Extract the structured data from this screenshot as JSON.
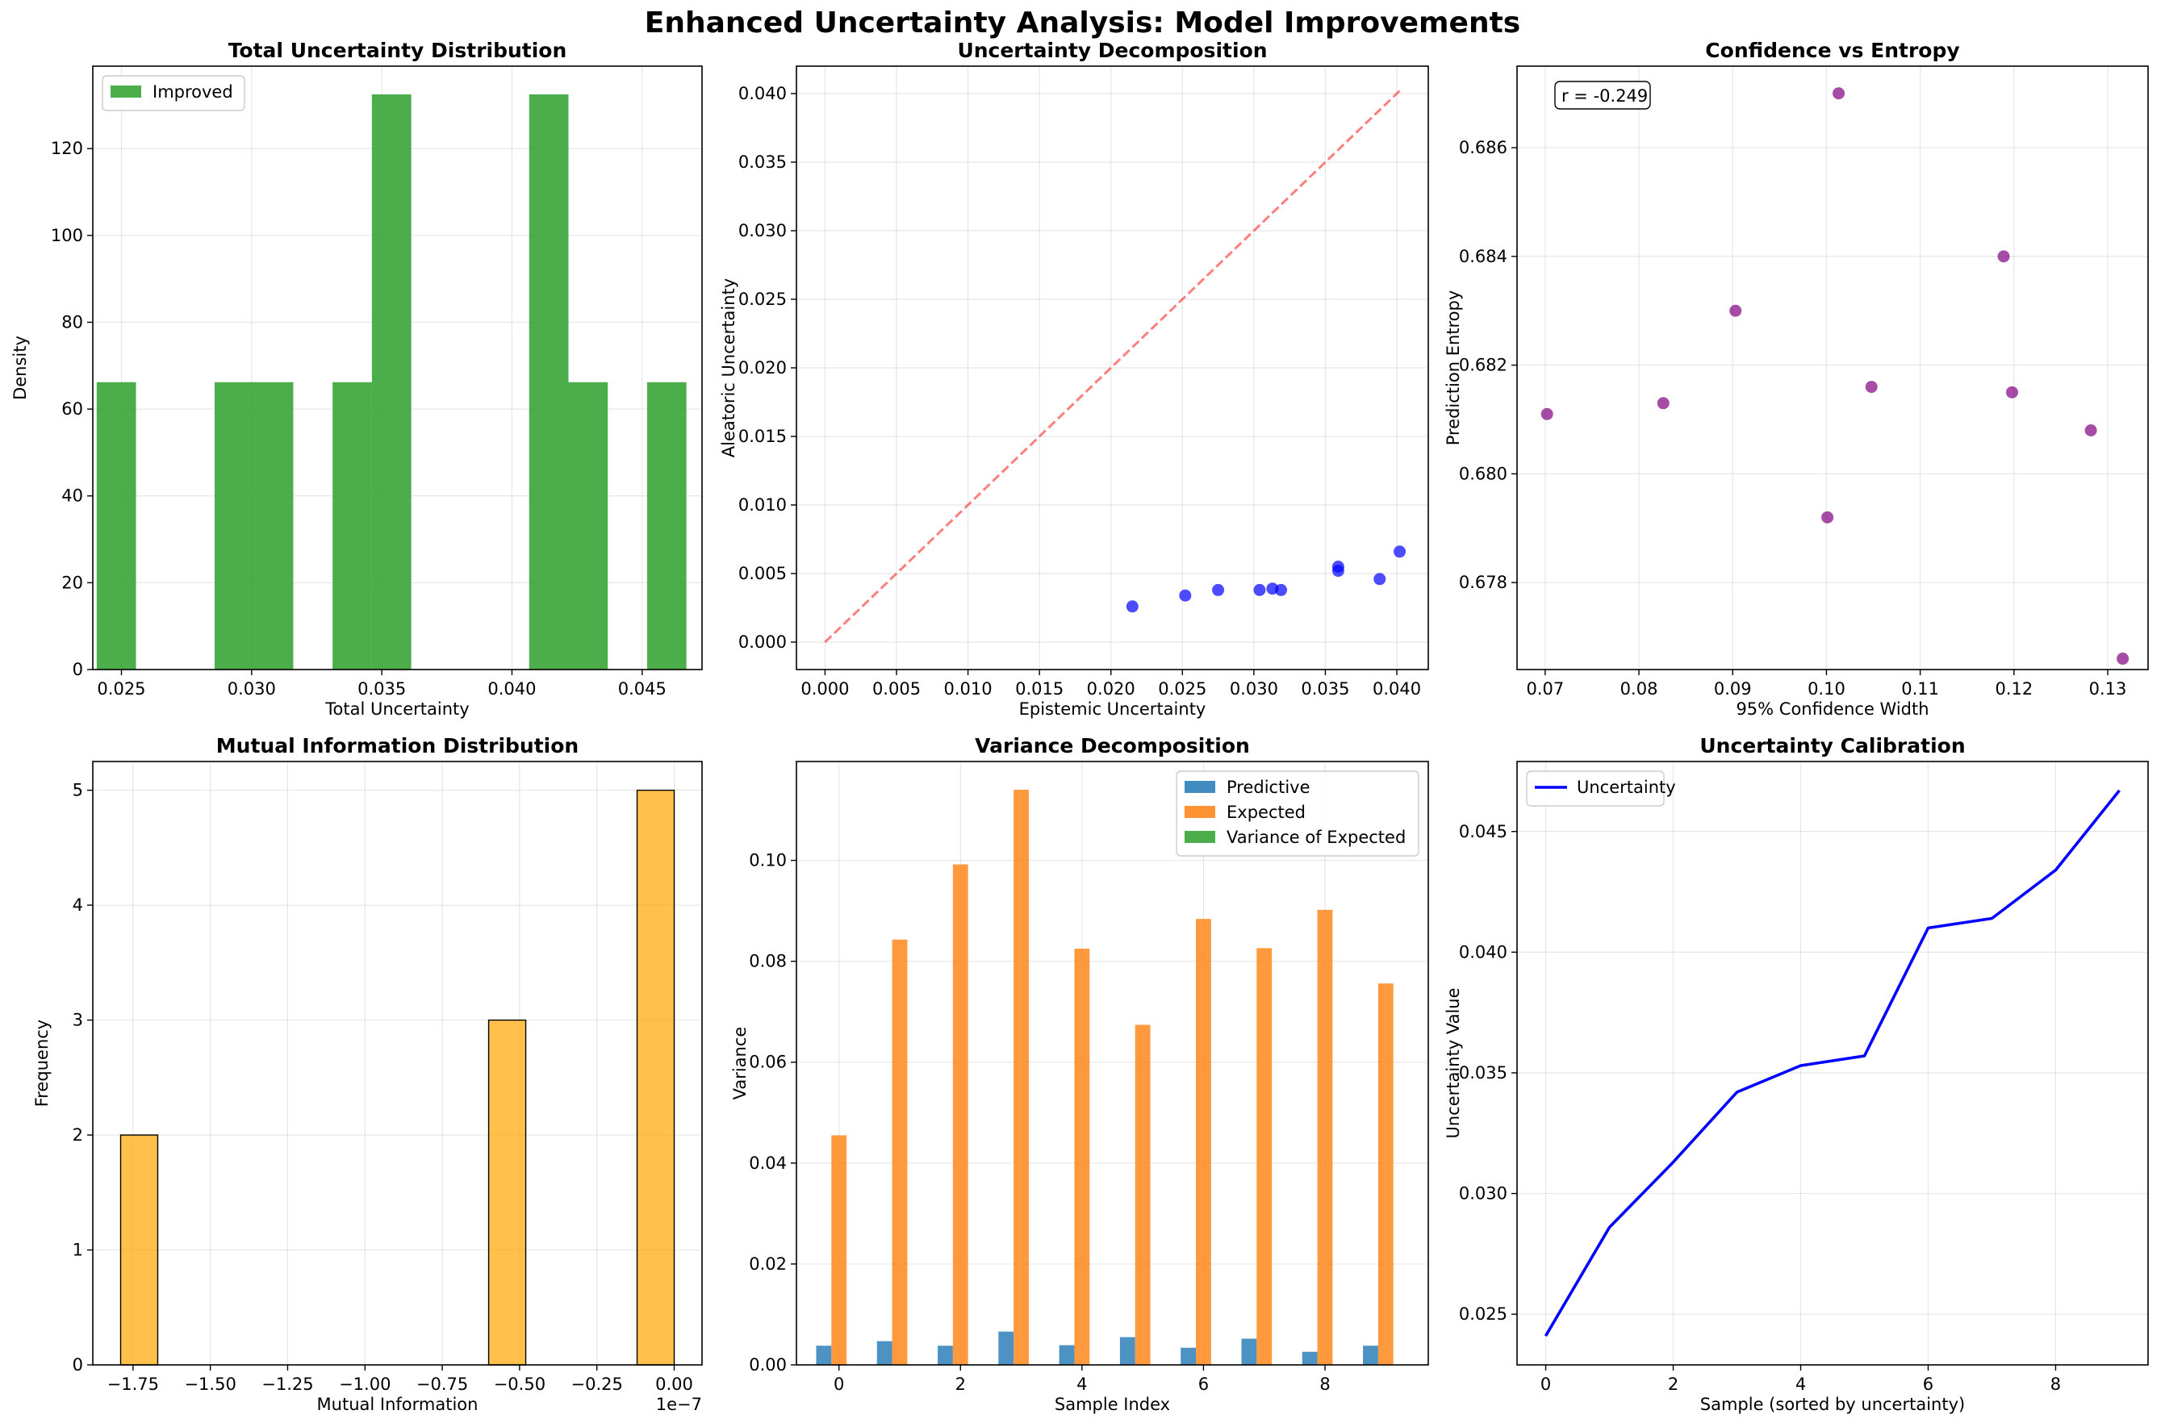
{
  "figure": {
    "title": "Enhanced Uncertainty Analysis: Model Improvements"
  },
  "chart_data": [
    {
      "id": "p1",
      "type": "bar",
      "subtype": "histogram",
      "title": "Total Uncertainty Distribution",
      "xlabel": "Total Uncertainty",
      "ylabel": "Density",
      "xlim": [
        0.0239,
        0.0473
      ],
      "ylim": [
        0,
        139
      ],
      "xticks": [
        0.025,
        0.03,
        0.035,
        0.04,
        0.045
      ],
      "xtick_labels": [
        "0.025",
        "0.030",
        "0.035",
        "0.040",
        "0.045"
      ],
      "yticks": [
        0,
        20,
        40,
        60,
        80,
        100,
        120
      ],
      "ytick_labels": [
        "0",
        "20",
        "40",
        "60",
        "80",
        "100",
        "120"
      ],
      "grid": true,
      "legend": {
        "position": "upper-left",
        "entries": [
          "Improved"
        ]
      },
      "color": "#2ca02c",
      "bins": [
        {
          "x0": 0.02405,
          "x1": 0.02556,
          "value": 66.2
        },
        {
          "x0": 0.02858,
          "x1": 0.0316,
          "value": 66.2
        },
        {
          "x0": 0.03311,
          "x1": 0.03462,
          "value": 66.2
        },
        {
          "x0": 0.03462,
          "x1": 0.03613,
          "value": 132.5
        },
        {
          "x0": 0.04066,
          "x1": 0.04217,
          "value": 132.5
        },
        {
          "x0": 0.04217,
          "x1": 0.04368,
          "value": 66.2
        },
        {
          "x0": 0.04519,
          "x1": 0.0467,
          "value": 66.2
        }
      ]
    },
    {
      "id": "p2",
      "type": "scatter",
      "title": "Uncertainty Decomposition",
      "xlabel": "Epistemic Uncertainty",
      "ylabel": "Aleatoric Uncertainty",
      "xlim": [
        -0.002,
        0.0422
      ],
      "ylim": [
        -0.002,
        0.042
      ],
      "xticks": [
        0.0,
        0.005,
        0.01,
        0.015,
        0.02,
        0.025,
        0.03,
        0.035,
        0.04
      ],
      "xtick_labels": [
        "0.000",
        "0.005",
        "0.010",
        "0.015",
        "0.020",
        "0.025",
        "0.030",
        "0.035",
        "0.040"
      ],
      "yticks": [
        0.0,
        0.005,
        0.01,
        0.015,
        0.02,
        0.025,
        0.03,
        0.035,
        0.04
      ],
      "ytick_labels": [
        "0.000",
        "0.005",
        "0.010",
        "0.015",
        "0.020",
        "0.025",
        "0.030",
        "0.035",
        "0.040"
      ],
      "grid": true,
      "color": "#0000ff",
      "reference_line": {
        "x": [
          0,
          0.0402
        ],
        "y": [
          0,
          0.0402
        ],
        "color": "#ff0000",
        "style": "dashed"
      },
      "points": [
        {
          "x": 0.0215,
          "y": 0.0026
        },
        {
          "x": 0.0252,
          "y": 0.0034
        },
        {
          "x": 0.0275,
          "y": 0.0038
        },
        {
          "x": 0.0304,
          "y": 0.0038
        },
        {
          "x": 0.0313,
          "y": 0.0039
        },
        {
          "x": 0.0319,
          "y": 0.0038
        },
        {
          "x": 0.0359,
          "y": 0.0052
        },
        {
          "x": 0.0359,
          "y": 0.0055
        },
        {
          "x": 0.0388,
          "y": 0.0046
        },
        {
          "x": 0.0402,
          "y": 0.0066
        }
      ]
    },
    {
      "id": "p3",
      "type": "scatter",
      "title": "Confidence vs Entropy",
      "xlabel": "95% Confidence Width",
      "ylabel": "Prediction Entropy",
      "xlim": [
        0.067,
        0.1343
      ],
      "ylim": [
        0.6764,
        0.6875
      ],
      "xticks": [
        0.07,
        0.08,
        0.09,
        0.1,
        0.11,
        0.12,
        0.13
      ],
      "xtick_labels": [
        "0.07",
        "0.08",
        "0.09",
        "0.10",
        "0.11",
        "0.12",
        "0.13"
      ],
      "yticks": [
        0.678,
        0.68,
        0.682,
        0.684,
        0.686
      ],
      "ytick_labels": [
        "0.678",
        "0.680",
        "0.682",
        "0.684",
        "0.686"
      ],
      "grid": true,
      "color": "#800080",
      "annotation": "r = -0.249",
      "points": [
        {
          "x": 0.0702,
          "y": 0.6811
        },
        {
          "x": 0.0826,
          "y": 0.6813
        },
        {
          "x": 0.0903,
          "y": 0.683
        },
        {
          "x": 0.1001,
          "y": 0.6792
        },
        {
          "x": 0.1013,
          "y": 0.687
        },
        {
          "x": 0.1048,
          "y": 0.6816
        },
        {
          "x": 0.1189,
          "y": 0.684
        },
        {
          "x": 0.1198,
          "y": 0.6815
        },
        {
          "x": 0.1282,
          "y": 0.6808
        },
        {
          "x": 0.1316,
          "y": 0.6766
        }
      ]
    },
    {
      "id": "p4",
      "type": "bar",
      "subtype": "histogram",
      "title": "Mutual Information Distribution",
      "xlabel": "Mutual Information",
      "ylabel": "Frequency",
      "offset_label": "1e−7",
      "xlim": [
        -1.88,
        0.09
      ],
      "ylim": [
        0,
        5.25
      ],
      "xticks": [
        -1.75,
        -1.5,
        -1.25,
        -1.0,
        -0.75,
        -0.5,
        -0.25,
        0.0
      ],
      "xtick_labels": [
        "−1.75",
        "−1.50",
        "−1.25",
        "−1.00",
        "−0.75",
        "−0.50",
        "−0.25",
        "0.00"
      ],
      "yticks": [
        0,
        1,
        2,
        3,
        4,
        5
      ],
      "ytick_labels": [
        "0",
        "1",
        "2",
        "3",
        "4",
        "5"
      ],
      "grid": true,
      "color": "#ffa500",
      "bins": [
        {
          "x0": -1.79,
          "x1": -1.67,
          "value": 2
        },
        {
          "x0": -0.6,
          "x1": -0.48,
          "value": 3
        },
        {
          "x0": -0.12,
          "x1": 0.0,
          "value": 5
        }
      ]
    },
    {
      "id": "p5",
      "type": "bar",
      "title": "Variance Decomposition",
      "xlabel": "Sample Index",
      "ylabel": "Variance",
      "xlim": [
        -0.7,
        9.7
      ],
      "ylim": [
        0,
        0.1196
      ],
      "xticks": [
        0,
        2,
        4,
        6,
        8
      ],
      "xtick_labels": [
        "0",
        "2",
        "4",
        "6",
        "8"
      ],
      "yticks": [
        0.0,
        0.02,
        0.04,
        0.06,
        0.08,
        0.1
      ],
      "ytick_labels": [
        "0.00",
        "0.02",
        "0.04",
        "0.06",
        "0.08",
        "0.10"
      ],
      "grid": true,
      "legend": {
        "position": "upper-right"
      },
      "categories": [
        0,
        1,
        2,
        3,
        4,
        5,
        6,
        7,
        8,
        9
      ],
      "series": [
        {
          "name": "Predictive",
          "color": "#1f77b4",
          "values": [
            0.0038,
            0.0047,
            0.0038,
            0.0066,
            0.0039,
            0.0055,
            0.0034,
            0.0052,
            0.0026,
            0.0038
          ]
        },
        {
          "name": "Expected",
          "color": "#ff7f0e",
          "values": [
            0.0455,
            0.0843,
            0.0992,
            0.114,
            0.0825,
            0.0674,
            0.0884,
            0.0826,
            0.0902,
            0.0756
          ]
        },
        {
          "name": "Variance of Expected",
          "color": "#2ca02c",
          "values": [
            0,
            0,
            0,
            0,
            0,
            0,
            0,
            0,
            0,
            0
          ]
        }
      ]
    },
    {
      "id": "p6",
      "type": "line",
      "title": "Uncertainty Calibration",
      "xlabel": "Sample (sorted by uncertainty)",
      "ylabel": "Uncertainty Value",
      "xlim": [
        -0.45,
        9.45
      ],
      "ylim": [
        0.0229,
        0.0479
      ],
      "xticks": [
        0,
        2,
        4,
        6,
        8
      ],
      "xtick_labels": [
        "0",
        "2",
        "4",
        "6",
        "8"
      ],
      "yticks": [
        0.025,
        0.03,
        0.035,
        0.04,
        0.045
      ],
      "ytick_labels": [
        "0.025",
        "0.030",
        "0.035",
        "0.040",
        "0.045"
      ],
      "grid": true,
      "legend": {
        "position": "upper-left"
      },
      "series": [
        {
          "name": "Uncertainty",
          "color": "#0000ff",
          "x": [
            0,
            1,
            2,
            3,
            4,
            5,
            6,
            7,
            8,
            9
          ],
          "y": [
            0.0241,
            0.0286,
            0.0313,
            0.0342,
            0.0353,
            0.0357,
            0.041,
            0.0414,
            0.0434,
            0.0467
          ]
        }
      ]
    }
  ]
}
